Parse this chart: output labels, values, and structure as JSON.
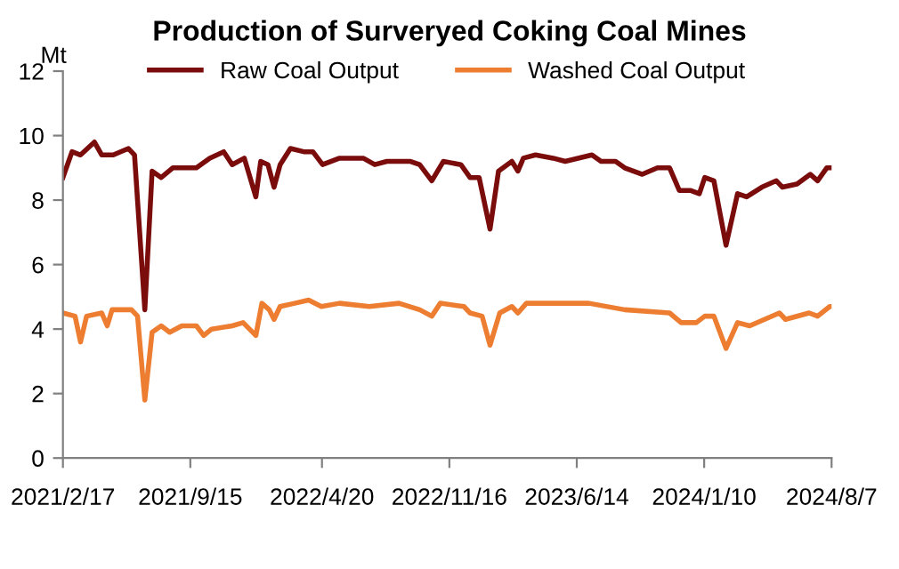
{
  "chart_data": {
    "type": "line",
    "title": "Production of Surveryed Coking Coal Mines",
    "ylabel": "Mt",
    "series": [
      {
        "name": "Raw Coal Output",
        "color": "#7b0c0c",
        "x": [
          "2021-02-17",
          "2021-03-04",
          "2021-03-18",
          "2021-04-10",
          "2021-04-22",
          "2021-05-11",
          "2021-06-05",
          "2021-06-15",
          "2021-07-02",
          "2021-07-14",
          "2021-07-29",
          "2021-08-17",
          "2021-09-25",
          "2021-10-17",
          "2021-11-09",
          "2021-11-23",
          "2021-12-13",
          "2022-01-01",
          "2022-01-09",
          "2022-01-21",
          "2022-01-31",
          "2022-02-10",
          "2022-02-27",
          "2022-03-21",
          "2022-04-05",
          "2022-04-21",
          "2022-05-19",
          "2022-06-27",
          "2022-07-16",
          "2022-08-05",
          "2022-08-25",
          "2022-09-13",
          "2022-09-28",
          "2022-10-18",
          "2022-11-06",
          "2022-12-05",
          "2022-12-20",
          "2023-01-04",
          "2023-01-22",
          "2023-02-05",
          "2023-02-27",
          "2023-03-09",
          "2023-03-18",
          "2023-04-07",
          "2023-05-06",
          "2023-05-26",
          "2023-07-09",
          "2023-07-24",
          "2023-08-17",
          "2023-09-01",
          "2023-09-30",
          "2023-10-25",
          "2023-11-14",
          "2023-11-30",
          "2023-12-18",
          "2024-01-02",
          "2024-01-11",
          "2024-01-26",
          "2024-02-15",
          "2024-03-05",
          "2024-03-20",
          "2024-04-14",
          "2024-05-08",
          "2024-05-18",
          "2024-06-11",
          "2024-07-03",
          "2024-07-15",
          "2024-07-30",
          "2024-08-07"
        ],
        "values": [
          8.7,
          9.5,
          9.4,
          9.8,
          9.4,
          9.4,
          9.6,
          9.4,
          4.6,
          8.9,
          8.7,
          9.0,
          9.0,
          9.3,
          9.5,
          9.1,
          9.3,
          8.1,
          9.2,
          9.1,
          8.4,
          9.1,
          9.6,
          9.5,
          9.5,
          9.1,
          9.3,
          9.3,
          9.1,
          9.2,
          9.2,
          9.2,
          9.1,
          8.6,
          9.2,
          9.1,
          8.7,
          8.7,
          7.1,
          8.9,
          9.2,
          8.9,
          9.3,
          9.4,
          9.3,
          9.2,
          9.4,
          9.2,
          9.2,
          9.0,
          8.8,
          9.0,
          9.0,
          8.3,
          8.3,
          8.2,
          8.7,
          8.6,
          6.6,
          8.2,
          8.1,
          8.4,
          8.6,
          8.4,
          8.5,
          8.8,
          8.6,
          9.0,
          9.0
        ]
      },
      {
        "name": "Washed Coal Output",
        "color": "#ed7d31",
        "x": [
          "2021-02-17",
          "2021-03-09",
          "2021-03-18",
          "2021-03-28",
          "2021-04-22",
          "2021-05-01",
          "2021-05-09",
          "2021-06-10",
          "2021-06-20",
          "2021-07-02",
          "2021-07-14",
          "2021-07-29",
          "2021-08-12",
          "2021-09-01",
          "2021-09-25",
          "2021-10-07",
          "2021-10-20",
          "2021-11-23",
          "2021-12-11",
          "2022-01-01",
          "2022-01-11",
          "2022-01-23",
          "2022-01-31",
          "2022-02-10",
          "2022-03-06",
          "2022-03-29",
          "2022-04-19",
          "2022-05-19",
          "2022-07-07",
          "2022-08-25",
          "2022-09-28",
          "2022-10-18",
          "2022-11-01",
          "2022-12-10",
          "2022-12-20",
          "2023-01-09",
          "2023-01-22",
          "2023-02-07",
          "2023-02-27",
          "2023-03-09",
          "2023-03-23",
          "2023-07-04",
          "2023-09-01",
          "2023-11-14",
          "2023-12-03",
          "2023-12-28",
          "2024-01-11",
          "2024-01-26",
          "2024-02-15",
          "2024-03-05",
          "2024-03-25",
          "2024-05-13",
          "2024-05-23",
          "2024-07-01",
          "2024-07-15",
          "2024-08-04",
          "2024-08-07"
        ],
        "values": [
          4.5,
          4.4,
          3.6,
          4.4,
          4.5,
          4.1,
          4.6,
          4.6,
          4.4,
          1.8,
          3.9,
          4.1,
          3.9,
          4.1,
          4.1,
          3.8,
          4.0,
          4.1,
          4.2,
          3.8,
          4.8,
          4.6,
          4.3,
          4.7,
          4.8,
          4.9,
          4.7,
          4.8,
          4.7,
          4.8,
          4.6,
          4.4,
          4.8,
          4.7,
          4.5,
          4.4,
          3.5,
          4.5,
          4.7,
          4.5,
          4.8,
          4.8,
          4.6,
          4.5,
          4.2,
          4.2,
          4.4,
          4.4,
          3.4,
          4.2,
          4.1,
          4.5,
          4.3,
          4.5,
          4.4,
          4.7,
          4.7
        ]
      }
    ],
    "xlim": [
      "2021-02-17",
      "2024-08-07"
    ],
    "xticks": [
      {
        "value": "2021-02-17",
        "label": "2021/2/17"
      },
      {
        "value": "2021-09-15",
        "label": "2021/9/15"
      },
      {
        "value": "2022-04-20",
        "label": "2022/4/20"
      },
      {
        "value": "2022-11-16",
        "label": "2022/11/16"
      },
      {
        "value": "2023-06-14",
        "label": "2023/6/14"
      },
      {
        "value": "2024-01-10",
        "label": "2024/1/10"
      },
      {
        "value": "2024-08-07",
        "label": "2024/8/7"
      }
    ],
    "ylim": [
      0,
      12
    ],
    "yticks": [
      0,
      2,
      4,
      6,
      8,
      10,
      12
    ],
    "grid": false,
    "legend": "top",
    "marker": "none",
    "line_style": "solid"
  }
}
